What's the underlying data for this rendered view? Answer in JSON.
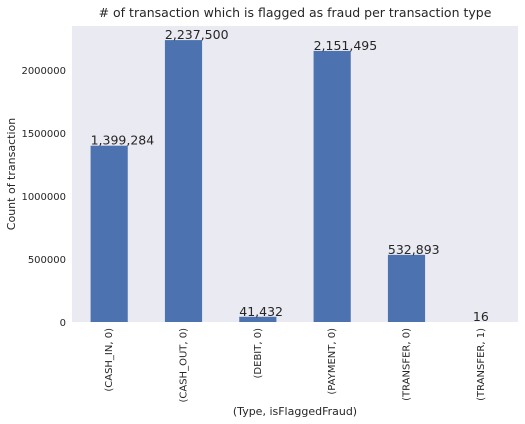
{
  "chart_data": {
    "type": "bar",
    "title": "# of transaction which is flagged as fraud per transaction type",
    "xlabel": "(Type, isFlaggedFraud)",
    "ylabel": "Count of transaction",
    "categories": [
      "(CASH_IN, 0)",
      "(CASH_OUT, 0)",
      "(DEBIT, 0)",
      "(PAYMENT, 0)",
      "(TRANSFER, 0)",
      "(TRANSFER, 1)"
    ],
    "values": [
      1399284,
      2237500,
      41432,
      2151495,
      532893,
      16
    ],
    "data_labels": [
      "1,399,284",
      "2,237,500",
      "41,432",
      "2,151,495",
      "532,893",
      "16"
    ],
    "yticks": [
      0,
      500000,
      1000000,
      1500000,
      2000000
    ],
    "ytick_labels": [
      "0",
      "500000",
      "1000000",
      "1500000",
      "2000000"
    ],
    "ylim": [
      0,
      2349375
    ],
    "grid": false,
    "colors": {
      "bar": "#4c72b0",
      "plot_background": "#eaeaf2"
    }
  }
}
